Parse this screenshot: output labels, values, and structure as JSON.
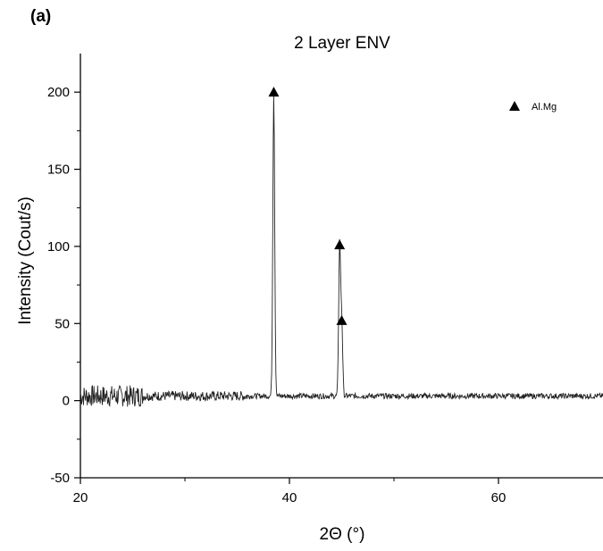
{
  "panel_label": "(a)",
  "chart_data": {
    "type": "line",
    "title": "2 Layer ENV",
    "xlabel": "2Θ (°)",
    "ylabel": "Intensity (Cout/s)",
    "xlim": [
      20,
      70
    ],
    "ylim": [
      -50,
      225
    ],
    "xticks": [
      20,
      40,
      60
    ],
    "yticks": [
      -50,
      0,
      50,
      100,
      150,
      200
    ],
    "grid": false,
    "legend": {
      "placement": "top-right",
      "entries": [
        {
          "label": "Al.Mg",
          "marker": "triangle"
        }
      ]
    },
    "series": [
      {
        "peaks": [
          {
            "x": 38.5,
            "y": 200
          },
          {
            "x": 44.8,
            "y": 100
          },
          {
            "x": 45.0,
            "y": 51
          }
        ],
        "baseline": 3
      }
    ],
    "markers": [
      {
        "label": "Al.Mg",
        "x": 38.5,
        "y": 200
      },
      {
        "label": "Al.Mg",
        "x": 44.8,
        "y": 101
      },
      {
        "label": "Al.Mg",
        "x": 45.0,
        "y": 52
      }
    ]
  }
}
